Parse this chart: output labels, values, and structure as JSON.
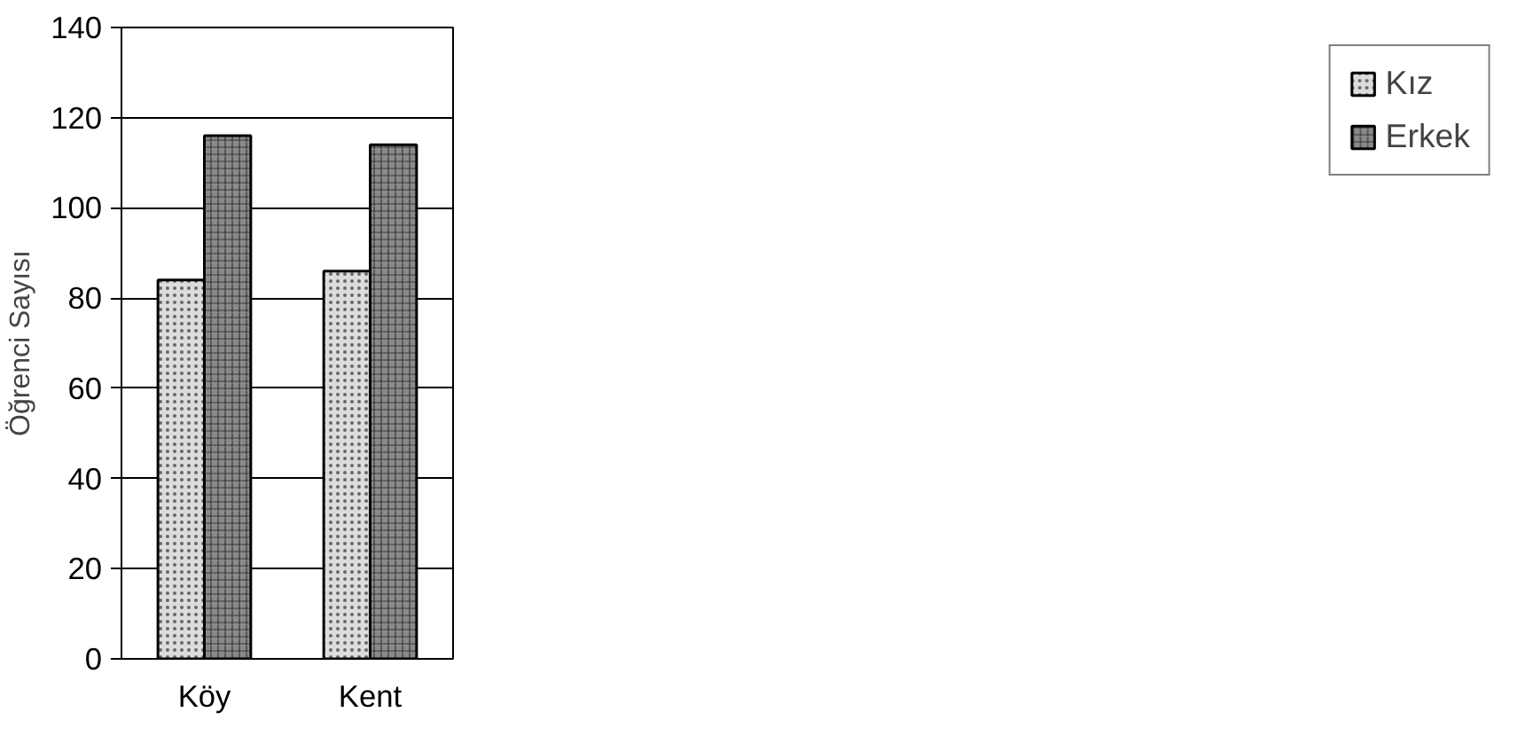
{
  "chart_data": {
    "type": "bar",
    "ylabel": "Öğrenci Sayısı",
    "categories": [
      "Köy",
      "Kent"
    ],
    "series": [
      {
        "name": "Kız",
        "color": "#dcdcdc",
        "values": [
          84,
          86
        ]
      },
      {
        "name": "Erkek",
        "color": "#8a8a8a",
        "values": [
          116,
          114
        ]
      }
    ],
    "ylim": [
      0,
      140
    ],
    "yticks": [
      0,
      20,
      40,
      60,
      80,
      100,
      120,
      140
    ],
    "grid": "y",
    "legend": "right"
  }
}
